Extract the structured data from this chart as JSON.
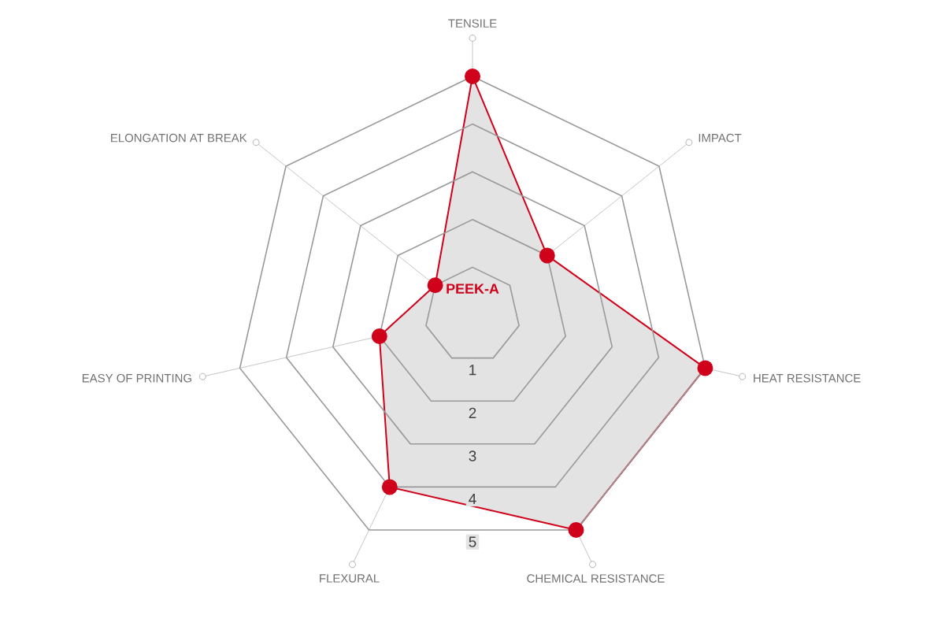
{
  "chart_data": {
    "type": "radar",
    "categories": [
      "TENSILE",
      "IMPACT",
      "HEAT RESISTANCE",
      "CHEMICAL RESISTANCE",
      "FLEXURAL",
      "EASY OF PRINTING",
      "ELONGATION AT BREAK"
    ],
    "series": [
      {
        "name": "PEEK-A",
        "color": "#d0021b",
        "values": [
          5,
          2,
          5,
          5,
          4,
          2,
          1
        ]
      }
    ],
    "ylim": [
      0,
      5
    ],
    "yticks": [
      1,
      2,
      3,
      4,
      5
    ],
    "grid": true,
    "marker": "circle"
  }
}
